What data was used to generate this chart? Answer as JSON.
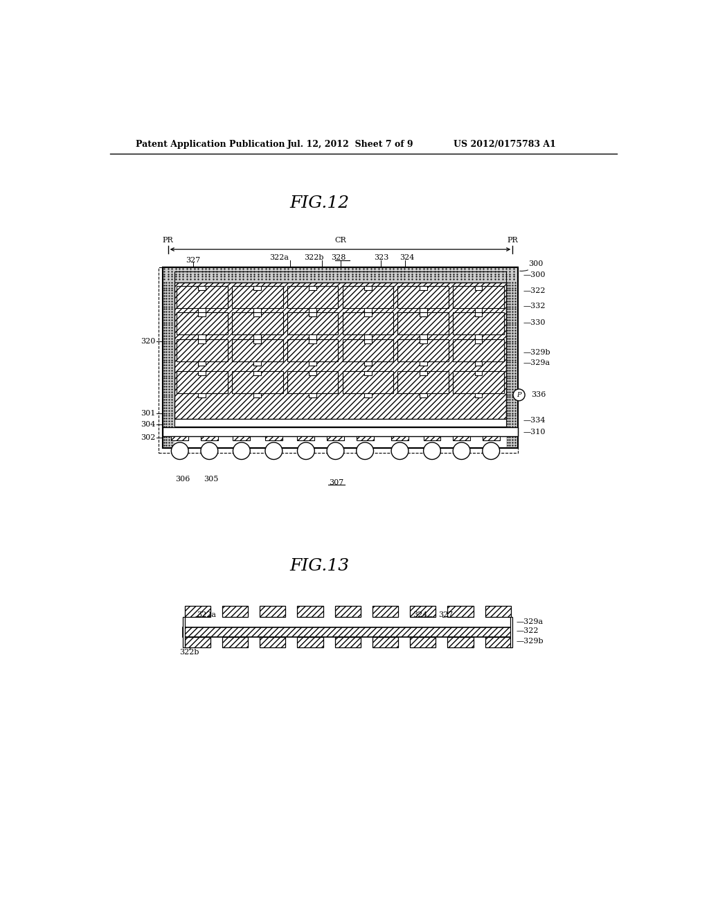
{
  "bg_color": "#ffffff",
  "header_left": "Patent Application Publication",
  "header_mid": "Jul. 12, 2012  Sheet 7 of 9",
  "header_right": "US 2012/0175783 A1",
  "fig12_title": "FIG.12",
  "fig13_title": "FIG.13"
}
